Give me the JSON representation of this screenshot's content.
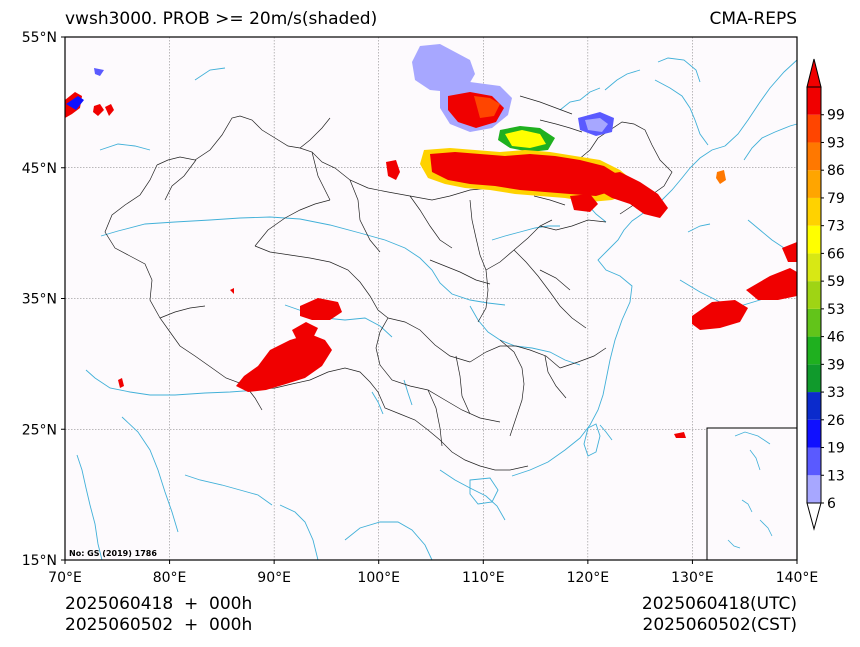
{
  "header": {
    "title": "vwsh3000. PROB >= 20m/s(shaded)",
    "source": "CMA-REPS"
  },
  "map": {
    "lat_labels": [
      "55°N",
      "45°N",
      "35°N",
      "25°N",
      "15°N"
    ],
    "lon_labels": [
      "70°E",
      "80°E",
      "90°E",
      "100°E",
      "110°E",
      "120°E",
      "130°E",
      "140°E"
    ],
    "lat_range": [
      15,
      55
    ],
    "lon_range": [
      70,
      140
    ],
    "map_note": "No: GS (2019) 1786",
    "background": "#fdfafd",
    "coast_color": "#41b0d8",
    "border_color": "#222222"
  },
  "colorbar": {
    "levels": [
      "6",
      "13",
      "19",
      "26",
      "33",
      "39",
      "46",
      "53",
      "59",
      "66",
      "73",
      "79",
      "86",
      "93",
      "99"
    ],
    "colors": [
      "#a7a7ff",
      "#5a5aff",
      "#1010ff",
      "#0b2bcc",
      "#109a2c",
      "#1fb01f",
      "#62c41a",
      "#9fd414",
      "#d8e814",
      "#ffff00",
      "#ffd200",
      "#ffa500",
      "#ff7800",
      "#ff4500",
      "#f00000"
    ]
  },
  "footer": {
    "left_line1": "2025060418  +  000h",
    "left_line2": "2025060502  +  000h",
    "right_line1": "2025060418(UTC)",
    "right_line2": "2025060502(CST)"
  }
}
